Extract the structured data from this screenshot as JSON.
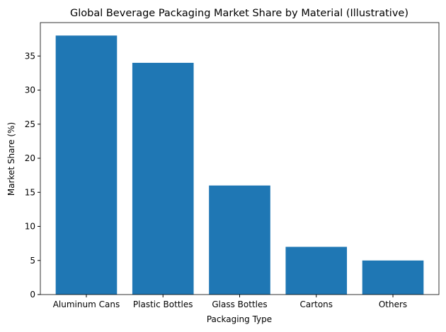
{
  "chart_data": {
    "type": "bar",
    "title": "Global Beverage Packaging Market Share by Material (Illustrative)",
    "x_label": "Packaging Type",
    "y_label": "Market Share (%)",
    "categories": [
      "Aluminum Cans",
      "Plastic Bottles",
      "Glass Bottles",
      "Cartons",
      "Others"
    ],
    "values": [
      38,
      34,
      16,
      7,
      5
    ],
    "color": "#1f77b4",
    "ylim": [
      0,
      39.9
    ],
    "yticks": [
      0,
      5,
      10,
      15,
      20,
      25,
      30,
      35
    ],
    "grid": false
  }
}
